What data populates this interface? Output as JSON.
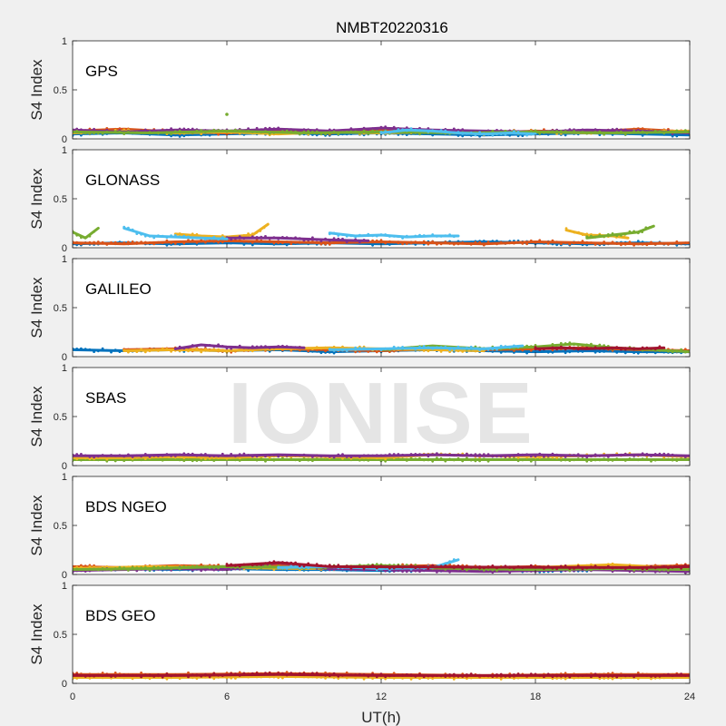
{
  "figure": {
    "title": "NMBT20220316",
    "xlabel": "UT(h)",
    "ylabel": "S4 Index",
    "watermark": "IONISE",
    "background": "#f0f0f0",
    "axes_background": "#ffffff"
  },
  "chart_data": {
    "type": "scatter",
    "title": "NMBT20220316",
    "xlabel": "UT(h)",
    "ylabel": "S4 Index",
    "xlim": [
      0,
      24
    ],
    "ylim": [
      0,
      1
    ],
    "xticks": [
      "0",
      "6",
      "12",
      "18",
      "24"
    ],
    "yticks": [
      "0",
      "0.5",
      "1"
    ],
    "grid": false,
    "palette": [
      "#0072bd",
      "#d95319",
      "#edb120",
      "#7e2f8e",
      "#77ac30",
      "#4dbeee",
      "#a2142f"
    ],
    "panels": [
      {
        "label": "GPS",
        "series": [
          {
            "color": "#0072bd",
            "x": [
              0,
              2,
              4,
              6,
              8,
              10,
              12,
              14,
              16,
              18,
              20,
              22,
              24
            ],
            "y": [
              0.05,
              0.06,
              0.04,
              0.05,
              0.06,
              0.05,
              0.06,
              0.05,
              0.04,
              0.05,
              0.06,
              0.05,
              0.04
            ]
          },
          {
            "color": "#d95319",
            "x": [
              0,
              2,
              4,
              6,
              8,
              10,
              12,
              14,
              16,
              18,
              20,
              22,
              24
            ],
            "y": [
              0.08,
              0.1,
              0.07,
              0.06,
              0.08,
              0.06,
              0.09,
              0.08,
              0.06,
              0.08,
              0.07,
              0.1,
              0.07
            ]
          },
          {
            "color": "#edb120",
            "x": [
              0,
              2,
              4,
              6,
              8,
              10,
              12,
              14,
              16,
              18,
              20,
              22,
              24
            ],
            "y": [
              0.06,
              0.08,
              0.06,
              0.07,
              0.05,
              0.07,
              0.06,
              0.07,
              0.05,
              0.07,
              0.06,
              0.07,
              0.08
            ]
          },
          {
            "color": "#7e2f8e",
            "x": [
              0,
              2,
              4,
              6,
              8,
              10,
              12,
              14,
              16,
              18,
              20,
              22,
              24
            ],
            "y": [
              0.09,
              0.07,
              0.09,
              0.08,
              0.1,
              0.08,
              0.11,
              0.09,
              0.08,
              0.07,
              0.09,
              0.08,
              0.06
            ]
          },
          {
            "color": "#77ac30",
            "x": [
              0,
              3,
              6,
              9,
              12,
              15,
              18,
              21,
              24
            ],
            "y": [
              0.07,
              0.06,
              0.08,
              0.06,
              0.07,
              0.06,
              0.07,
              0.06,
              0.07
            ]
          },
          {
            "color": "#4dbeee",
            "x": [
              12,
              13,
              14,
              15,
              16,
              17,
              18
            ],
            "y": [
              0.06,
              0.09,
              0.08,
              0.06,
              0.05,
              0.06,
              0.05
            ]
          }
        ],
        "outliers": [
          {
            "x": 6.0,
            "y": 0.25,
            "color": "#77ac30"
          }
        ]
      },
      {
        "label": "GLONASS",
        "series": [
          {
            "color": "#0072bd",
            "x": [
              0,
              2,
              4,
              6,
              8,
              10,
              12,
              14,
              16,
              18,
              20,
              22,
              24
            ],
            "y": [
              0.04,
              0.05,
              0.04,
              0.05,
              0.04,
              0.05,
              0.04,
              0.05,
              0.06,
              0.05,
              0.04,
              0.05,
              0.04
            ]
          },
          {
            "color": "#d95319",
            "x": [
              0,
              2,
              4,
              6,
              8,
              10,
              12,
              14,
              16,
              18,
              20,
              22,
              24
            ],
            "y": [
              0.05,
              0.04,
              0.06,
              0.07,
              0.06,
              0.05,
              0.06,
              0.05,
              0.04,
              0.06,
              0.05,
              0.04,
              0.05
            ]
          },
          {
            "color": "#edb120",
            "x": [
              4,
              5,
              6,
              7,
              7.6
            ],
            "y": [
              0.14,
              0.12,
              0.11,
              0.13,
              0.24
            ]
          },
          {
            "color": "#edb120",
            "x": [
              19.2,
              20,
              21,
              21.6
            ],
            "y": [
              0.18,
              0.13,
              0.12,
              0.1
            ]
          },
          {
            "color": "#7e2f8e",
            "x": [
              6,
              8,
              10,
              11.5
            ],
            "y": [
              0.1,
              0.1,
              0.08,
              0.07
            ]
          },
          {
            "color": "#77ac30",
            "x": [
              0,
              0.5,
              1
            ],
            "y": [
              0.16,
              0.1,
              0.2
            ]
          },
          {
            "color": "#77ac30",
            "x": [
              20,
              21,
              22,
              22.6
            ],
            "y": [
              0.1,
              0.13,
              0.16,
              0.22
            ]
          },
          {
            "color": "#4dbeee",
            "x": [
              2,
              3,
              4,
              5,
              6
            ],
            "y": [
              0.2,
              0.12,
              0.11,
              0.1,
              0.09
            ]
          },
          {
            "color": "#4dbeee",
            "x": [
              10,
              11,
              12,
              13,
              14,
              15
            ],
            "y": [
              0.15,
              0.12,
              0.13,
              0.11,
              0.12,
              0.12
            ]
          }
        ],
        "outliers": []
      },
      {
        "label": "GALILEO",
        "series": [
          {
            "color": "#0072bd",
            "x": [
              0,
              2,
              4,
              6,
              8,
              10,
              12,
              14,
              16,
              18,
              20,
              22,
              24
            ],
            "y": [
              0.07,
              0.06,
              0.07,
              0.06,
              0.07,
              0.05,
              0.06,
              0.07,
              0.06,
              0.05,
              0.06,
              0.05,
              0.05
            ]
          },
          {
            "color": "#d95319",
            "x": [
              2,
              4,
              6,
              8,
              10,
              12,
              14,
              16,
              18,
              20,
              22,
              24
            ],
            "y": [
              0.07,
              0.08,
              0.06,
              0.08,
              0.07,
              0.06,
              0.08,
              0.07,
              0.08,
              0.09,
              0.07,
              0.06
            ]
          },
          {
            "color": "#edb120",
            "x": [
              2,
              4,
              6,
              8,
              10,
              12,
              14,
              16
            ],
            "y": [
              0.06,
              0.07,
              0.06,
              0.08,
              0.09,
              0.08,
              0.07,
              0.06
            ]
          },
          {
            "color": "#7e2f8e",
            "x": [
              4,
              5,
              6,
              7,
              8,
              9
            ],
            "y": [
              0.08,
              0.12,
              0.1,
              0.09,
              0.1,
              0.09
            ]
          },
          {
            "color": "#77ac30",
            "x": [
              12,
              14,
              16,
              18,
              19.5,
              21,
              24
            ],
            "y": [
              0.07,
              0.11,
              0.08,
              0.1,
              0.13,
              0.09,
              0.05
            ]
          },
          {
            "color": "#4dbeee",
            "x": [
              10,
              12,
              14,
              16,
              17.5
            ],
            "y": [
              0.07,
              0.08,
              0.09,
              0.08,
              0.11
            ]
          },
          {
            "color": "#a2142f",
            "x": [
              18,
              19,
              20,
              21,
              22,
              23
            ],
            "y": [
              0.08,
              0.09,
              0.08,
              0.09,
              0.08,
              0.09
            ]
          }
        ],
        "outliers": []
      },
      {
        "label": "SBAS",
        "series": [
          {
            "color": "#77ac30",
            "x": [
              0,
              2,
              4,
              6,
              8,
              10,
              12,
              14,
              16,
              18,
              20,
              22,
              24
            ],
            "y": [
              0.06,
              0.06,
              0.06,
              0.06,
              0.06,
              0.06,
              0.06,
              0.06,
              0.06,
              0.06,
              0.06,
              0.06,
              0.06
            ]
          },
          {
            "color": "#edb120",
            "x": [
              0,
              2,
              4,
              6,
              8,
              10,
              12,
              14,
              16,
              18,
              20,
              22,
              24
            ],
            "y": [
              0.08,
              0.08,
              0.09,
              0.08,
              0.1,
              0.09,
              0.08,
              0.11,
              0.1,
              0.09,
              0.1,
              0.11,
              0.09
            ]
          },
          {
            "color": "#7e2f8e",
            "x": [
              0,
              2,
              4,
              6,
              8,
              10,
              12,
              14,
              16,
              18,
              20,
              22,
              24
            ],
            "y": [
              0.1,
              0.1,
              0.11,
              0.1,
              0.11,
              0.1,
              0.1,
              0.11,
              0.1,
              0.11,
              0.1,
              0.11,
              0.1
            ]
          }
        ],
        "outliers": []
      },
      {
        "label": "BDS NGEO",
        "series": [
          {
            "color": "#0072bd",
            "x": [
              0,
              2,
              4,
              6,
              8,
              10,
              12,
              14,
              16,
              18,
              20,
              22,
              24
            ],
            "y": [
              0.05,
              0.06,
              0.05,
              0.06,
              0.05,
              0.05,
              0.04,
              0.05,
              0.05,
              0.04,
              0.05,
              0.05,
              0.04
            ]
          },
          {
            "color": "#d95319",
            "x": [
              0,
              2,
              4,
              6,
              8,
              10,
              12,
              14,
              16,
              18,
              20,
              22,
              24
            ],
            "y": [
              0.08,
              0.07,
              0.09,
              0.08,
              0.1,
              0.07,
              0.08,
              0.09,
              0.07,
              0.08,
              0.06,
              0.08,
              0.09
            ]
          },
          {
            "color": "#edb120",
            "x": [
              0,
              3,
              6,
              9,
              12,
              15,
              18,
              21,
              24
            ],
            "y": [
              0.06,
              0.08,
              0.07,
              0.06,
              0.07,
              0.06,
              0.07,
              0.1,
              0.06
            ]
          },
          {
            "color": "#7e2f8e",
            "x": [
              0,
              2,
              4,
              6,
              8,
              10,
              12,
              14,
              16,
              18,
              20,
              22,
              24
            ],
            "y": [
              0.04,
              0.05,
              0.06,
              0.05,
              0.12,
              0.06,
              0.05,
              0.04,
              0.03,
              0.04,
              0.05,
              0.04,
              0.03
            ]
          },
          {
            "color": "#77ac30",
            "x": [
              0,
              3,
              6,
              9,
              12,
              15,
              18,
              21,
              24
            ],
            "y": [
              0.05,
              0.06,
              0.08,
              0.07,
              0.09,
              0.06,
              0.05,
              0.06,
              0.05
            ]
          },
          {
            "color": "#4dbeee",
            "x": [
              8,
              10,
              12,
              14,
              15
            ],
            "y": [
              0.07,
              0.08,
              0.06,
              0.07,
              0.15
            ]
          },
          {
            "color": "#a2142f",
            "x": [
              6,
              8,
              10,
              22,
              24
            ],
            "y": [
              0.09,
              0.12,
              0.08,
              0.07,
              0.08
            ]
          }
        ],
        "outliers": []
      },
      {
        "label": "BDS GEO",
        "series": [
          {
            "color": "#edb120",
            "x": [
              0,
              4,
              8,
              12,
              16,
              20,
              24
            ],
            "y": [
              0.06,
              0.06,
              0.07,
              0.06,
              0.06,
              0.06,
              0.06
            ]
          },
          {
            "color": "#d95319",
            "x": [
              0,
              4,
              8,
              12,
              16,
              20,
              24
            ],
            "y": [
              0.09,
              0.09,
              0.1,
              0.09,
              0.08,
              0.09,
              0.09
            ]
          },
          {
            "color": "#a2142f",
            "x": [
              0,
              4,
              8,
              12,
              16,
              20,
              24
            ],
            "y": [
              0.08,
              0.08,
              0.09,
              0.08,
              0.08,
              0.08,
              0.08
            ]
          }
        ],
        "outliers": []
      }
    ]
  }
}
